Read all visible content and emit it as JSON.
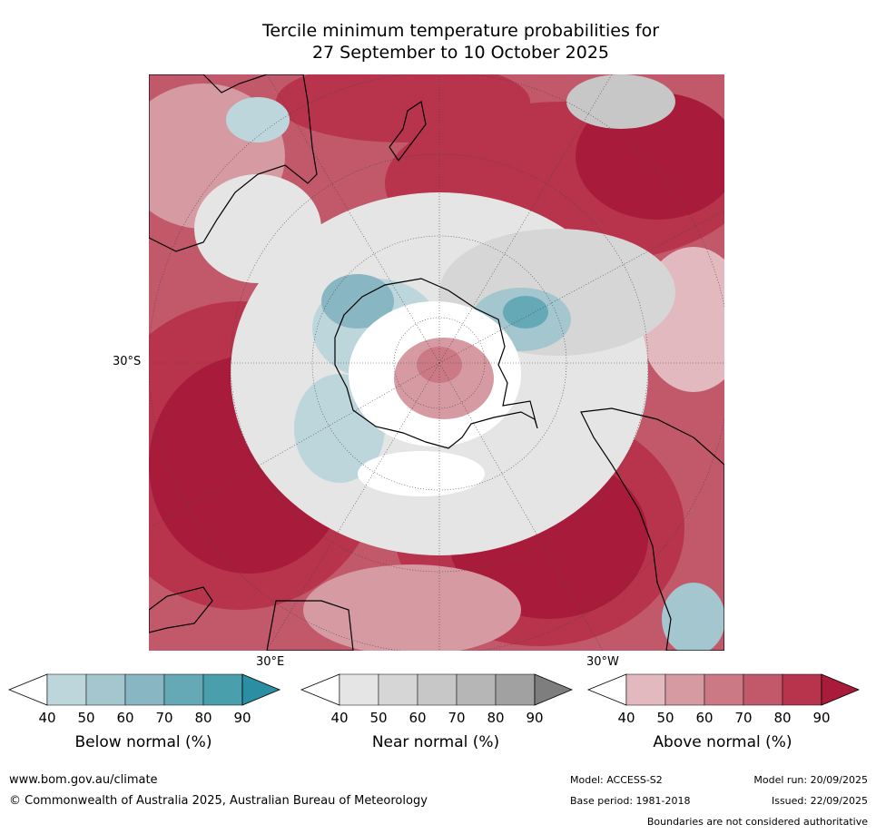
{
  "title": {
    "line1": "Tercile minimum temperature probabilities for",
    "line2": "27 September to 10 October 2025"
  },
  "map": {
    "projection": "south-polar stereographic",
    "lat_label": "30°S",
    "lon_labels": [
      "30°E",
      "30°W"
    ]
  },
  "legends": [
    {
      "name": "Below normal (%)",
      "ticks": [
        "40",
        "50",
        "60",
        "70",
        "80",
        "90"
      ],
      "colors": [
        "#ffffff",
        "#bdd6dc",
        "#a4c7cf",
        "#88b6c2",
        "#66a9b6",
        "#4a9fad",
        "#2b8ea2"
      ]
    },
    {
      "name": "Near normal (%)",
      "ticks": [
        "40",
        "50",
        "60",
        "70",
        "80",
        "90"
      ],
      "colors": [
        "#ffffff",
        "#e5e5e5",
        "#d6d6d6",
        "#c7c7c7",
        "#b6b6b6",
        "#a1a1a1",
        "#7e7e7e"
      ]
    },
    {
      "name": "Above normal (%)",
      "ticks": [
        "40",
        "50",
        "60",
        "70",
        "80",
        "90"
      ],
      "colors": [
        "#ffffff",
        "#e2b9bf",
        "#d69aa2",
        "#cb7985",
        "#c2596b",
        "#b8344d",
        "#a91b3a"
      ]
    }
  ],
  "footer": {
    "website": "www.bom.gov.au/climate",
    "copyright": "© Commonwealth of Australia 2025, Australian Bureau of Meteorology",
    "model": "Model: ACCESS-S2",
    "base_period": "Base period: 1981-2018",
    "model_run": "Model run: 20/09/2025",
    "issued": "Issued: 22/09/2025",
    "disclaimer": "Boundaries are not considered authoritative"
  }
}
